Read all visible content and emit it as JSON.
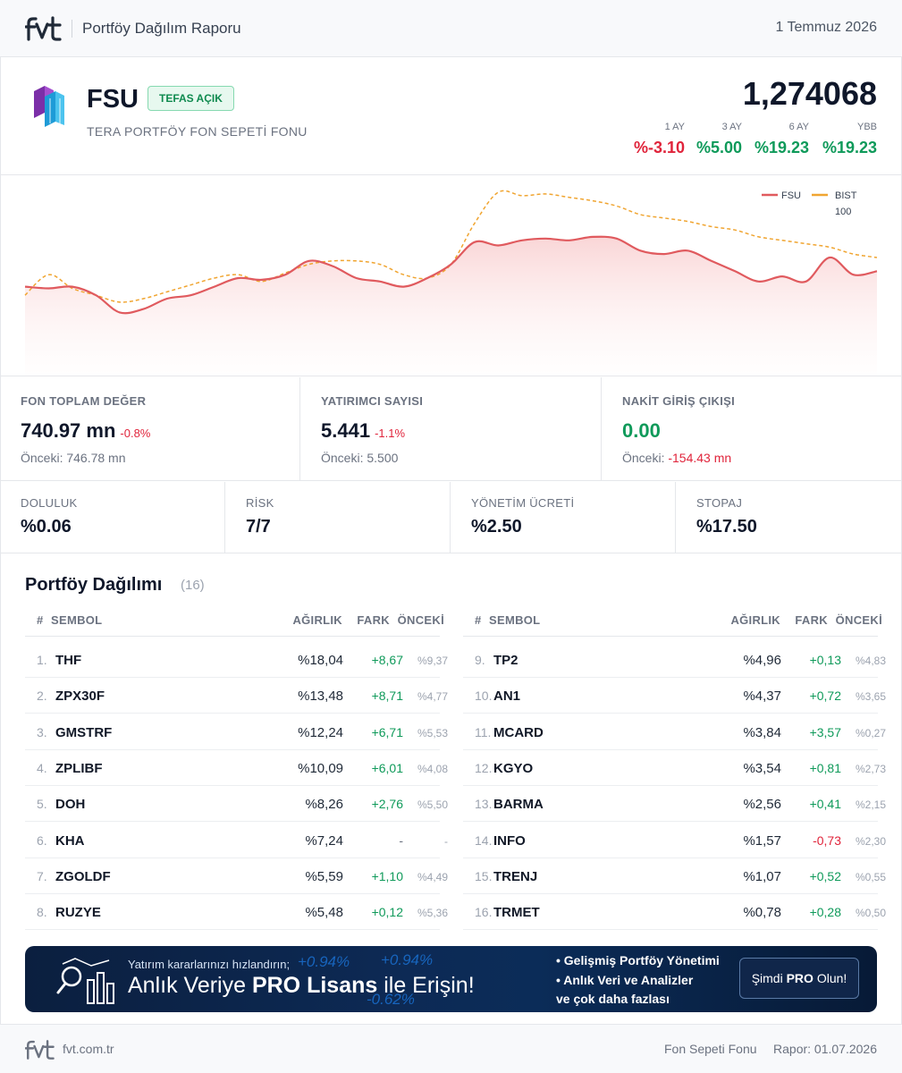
{
  "header": {
    "title": "Portföy Dağılım Raporu",
    "date": "1 Temmuz 2026"
  },
  "fund": {
    "code": "FSU",
    "badge": "TEFAS AÇIK",
    "name": "TERA PORTFÖY FON SEPETİ FONU",
    "price": "1,274068",
    "performance": [
      {
        "period": "1 AY",
        "value": "%-3.10",
        "color": "#e0243b"
      },
      {
        "period": "3 AY",
        "value": "%5.00",
        "color": "#0f9a5a"
      },
      {
        "period": "6 AY",
        "value": "%19.23",
        "color": "#0f9a5a"
      },
      {
        "period": "YBB",
        "value": "%19.23",
        "color": "#0f9a5a"
      }
    ]
  },
  "chart_data": {
    "type": "line",
    "legend_position": "top-right",
    "grid": false,
    "series": [
      {
        "name": "FSU",
        "color": "#e05a5e",
        "values": [
          0.45,
          0.44,
          0.45,
          0.4,
          0.3,
          0.32,
          0.38,
          0.4,
          0.45,
          0.5,
          0.49,
          0.52,
          0.6,
          0.57,
          0.5,
          0.48,
          0.45,
          0.5,
          0.58,
          0.71,
          0.69,
          0.72,
          0.73,
          0.72,
          0.74,
          0.73,
          0.66,
          0.64,
          0.66,
          0.6,
          0.54,
          0.48,
          0.51,
          0.48,
          0.62,
          0.52,
          0.54
        ]
      },
      {
        "name": "BIST 100",
        "color": "#f0a531",
        "values": [
          0.4,
          0.52,
          0.44,
          0.4,
          0.36,
          0.38,
          0.42,
          0.46,
          0.5,
          0.52,
          0.48,
          0.53,
          0.58,
          0.6,
          0.6,
          0.58,
          0.52,
          0.5,
          0.58,
          0.82,
          1.0,
          0.98,
          0.99,
          0.97,
          0.95,
          0.92,
          0.87,
          0.85,
          0.83,
          0.8,
          0.78,
          0.74,
          0.72,
          0.7,
          0.68,
          0.64,
          0.62
        ]
      }
    ]
  },
  "stats": {
    "total_value": {
      "label": "FON TOPLAM DEĞER",
      "value": "740.97 mn",
      "change": "-0.8%",
      "prev": "Önceki: 746.78 mn"
    },
    "investors": {
      "label": "YATIRIMCI SAYISI",
      "value": "5.441",
      "change": "-1.1%",
      "prev": "Önceki: 5.500"
    },
    "cash_flow": {
      "label": "NAKİT GİRİŞ ÇIKIŞI",
      "value": "0.00",
      "prev_label": "Önceki:",
      "prev_value": "-154.43 mn"
    },
    "occupancy": {
      "label": "DOLULUK",
      "value": "%0.06"
    },
    "risk": {
      "label": "RİSK",
      "value": "7/7"
    },
    "fee": {
      "label": "YÖNETİM ÜCRETİ",
      "value": "%2.50"
    },
    "withholding": {
      "label": "STOPAJ",
      "value": "%17.50"
    }
  },
  "portfolio": {
    "title": "Portföy Dağılımı",
    "count": "(16)",
    "headers": {
      "num": "#",
      "symbol": "SEMBOL",
      "weight": "AĞIRLIK",
      "diff": "FARK",
      "prev": "ÖNCEKİ"
    },
    "rows": [
      {
        "idx": "1.",
        "symbol": "THF",
        "weight": "%18,04",
        "diff": "+8,67",
        "prev": "%9,37",
        "dir": "up"
      },
      {
        "idx": "2.",
        "symbol": "ZPX30F",
        "weight": "%13,48",
        "diff": "+8,71",
        "prev": "%4,77",
        "dir": "up"
      },
      {
        "idx": "3.",
        "symbol": "GMSTRF",
        "weight": "%12,24",
        "diff": "+6,71",
        "prev": "%5,53",
        "dir": "up"
      },
      {
        "idx": "4.",
        "symbol": "ZPLIBF",
        "weight": "%10,09",
        "diff": "+6,01",
        "prev": "%4,08",
        "dir": "up"
      },
      {
        "idx": "5.",
        "symbol": "DOH",
        "weight": "%8,26",
        "diff": "+2,76",
        "prev": "%5,50",
        "dir": "up"
      },
      {
        "idx": "6.",
        "symbol": "KHA",
        "weight": "%7,24",
        "diff": "-",
        "prev": "-",
        "dir": "none"
      },
      {
        "idx": "7.",
        "symbol": "ZGOLDF",
        "weight": "%5,59",
        "diff": "+1,10",
        "prev": "%4,49",
        "dir": "up"
      },
      {
        "idx": "8.",
        "symbol": "RUZYE",
        "weight": "%5,48",
        "diff": "+0,12",
        "prev": "%5,36",
        "dir": "up"
      },
      {
        "idx": "9.",
        "symbol": "TP2",
        "weight": "%4,96",
        "diff": "+0,13",
        "prev": "%4,83",
        "dir": "up"
      },
      {
        "idx": "10.",
        "symbol": "AN1",
        "weight": "%4,37",
        "diff": "+0,72",
        "prev": "%3,65",
        "dir": "up"
      },
      {
        "idx": "11.",
        "symbol": "MCARD",
        "weight": "%3,84",
        "diff": "+3,57",
        "prev": "%0,27",
        "dir": "up"
      },
      {
        "idx": "12.",
        "symbol": "KGYO",
        "weight": "%3,54",
        "diff": "+0,81",
        "prev": "%2,73",
        "dir": "up"
      },
      {
        "idx": "13.",
        "symbol": "BARMA",
        "weight": "%2,56",
        "diff": "+0,41",
        "prev": "%2,15",
        "dir": "up"
      },
      {
        "idx": "14.",
        "symbol": "INFO",
        "weight": "%1,57",
        "diff": "-0,73",
        "prev": "%2,30",
        "dir": "down"
      },
      {
        "idx": "15.",
        "symbol": "TRENJ",
        "weight": "%1,07",
        "diff": "+0,52",
        "prev": "%0,55",
        "dir": "up"
      },
      {
        "idx": "16.",
        "symbol": "TRMET",
        "weight": "%0,78",
        "diff": "+0,28",
        "prev": "%0,50",
        "dir": "up"
      }
    ]
  },
  "banner": {
    "small": "Yatırım kararlarınızı hızlandırın;",
    "big_pre": "Anlık Veriye ",
    "big_bold": "PRO Lisans",
    "big_post": " ile Erişin!",
    "features": [
      "• Gelişmiş Portföy Yönetimi",
      "• Anlık Veri ve Analizler",
      "ve çok daha fazlası"
    ],
    "cta_pre": "Şimdi ",
    "cta_bold": "PRO",
    "cta_post": " Olun!",
    "bg_numbers": [
      "+0.94%",
      "+0.94%",
      "-0.62%"
    ]
  },
  "footer": {
    "site": "fvt.com.tr",
    "type": "Fon Sepeti Fonu",
    "date": "Rapor: 01.07.2026"
  },
  "colors": {
    "up": "#0f9a5a",
    "down": "#e0243b",
    "neutral": "#6b7280"
  }
}
